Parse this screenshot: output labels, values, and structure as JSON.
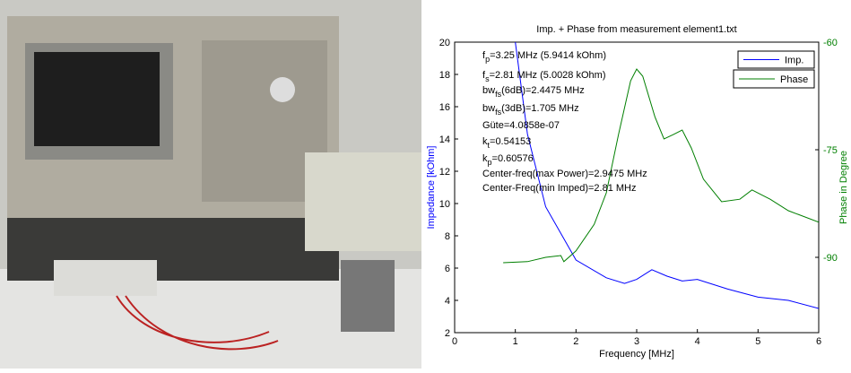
{
  "chart_data": {
    "type": "line",
    "title": "Imp. + Phase from measurement element1.txt",
    "x_label": "Frequency [MHz]",
    "y_label": "Impedance [kOhm]",
    "y2_label": "Phase in Degree",
    "xlim": [
      0,
      6
    ],
    "xticks": [
      0,
      1,
      2,
      3,
      4,
      5,
      6
    ],
    "ylim": [
      2,
      20
    ],
    "yticks": [
      2,
      4,
      6,
      8,
      10,
      12,
      14,
      16,
      18,
      20
    ],
    "y2lim": [
      -100.5,
      -60
    ],
    "y2ticks": [
      -90,
      -75,
      -60
    ],
    "legend": "upper right",
    "series": [
      {
        "name": "Imp.",
        "color": "#0000ff",
        "x": [
          1.0,
          1.2,
          1.5,
          2.0,
          2.5,
          2.8,
          3.0,
          3.25,
          3.5,
          3.75,
          4.0,
          4.5,
          5.0,
          5.5,
          6.0
        ],
        "values": [
          20,
          14.3,
          9.8,
          6.5,
          5.4,
          5.05,
          5.3,
          5.9,
          5.5,
          5.2,
          5.3,
          4.7,
          4.2,
          4.0,
          3.5
        ]
      },
      {
        "name": "Phase",
        "color": "#007f00",
        "axis": "y2",
        "x": [
          0.8,
          1.2,
          1.5,
          1.75,
          1.8,
          2.0,
          2.3,
          2.5,
          2.7,
          2.9,
          3.0,
          3.1,
          3.3,
          3.45,
          3.6,
          3.75,
          3.9,
          4.1,
          4.4,
          4.7,
          4.9,
          5.2,
          5.5,
          6.0
        ],
        "values": [
          -90.75,
          -90.6,
          -90,
          -89.75,
          -90.6,
          -89.1,
          -85.4,
          -81,
          -72.9,
          -65.4,
          -63.75,
          -64.75,
          -70.4,
          -73.5,
          -72.9,
          -72.25,
          -74.75,
          -79.1,
          -82.25,
          -81.9,
          -80.6,
          -81.9,
          -83.5,
          -85.1
        ]
      }
    ],
    "annotations": [
      {
        "text": "f",
        "sub": "p",
        "after": "=3.25 MHz (5.9414 kOhm)"
      },
      {
        "text": "f",
        "sub": "s",
        "after": "=2.81 MHz (5.0028 kOhm)"
      },
      {
        "text": "bw",
        "sub": "fs",
        "after": "(6dB)=2.4475 MHz"
      },
      {
        "text": "bw",
        "sub": "fs",
        "after": "(3dB)=1.705 MHz"
      },
      {
        "text": "Güte=4.0858e-07"
      },
      {
        "text": "k",
        "sub": "t",
        "after": "=0.54153"
      },
      {
        "text": "k",
        "sub": "p",
        "after": "=0.60576"
      },
      {
        "text": "Center-freq(max Power)=2.9475 MHz"
      },
      {
        "text": "Center-Freq(min Imped)=2.81 MHz"
      }
    ]
  }
}
